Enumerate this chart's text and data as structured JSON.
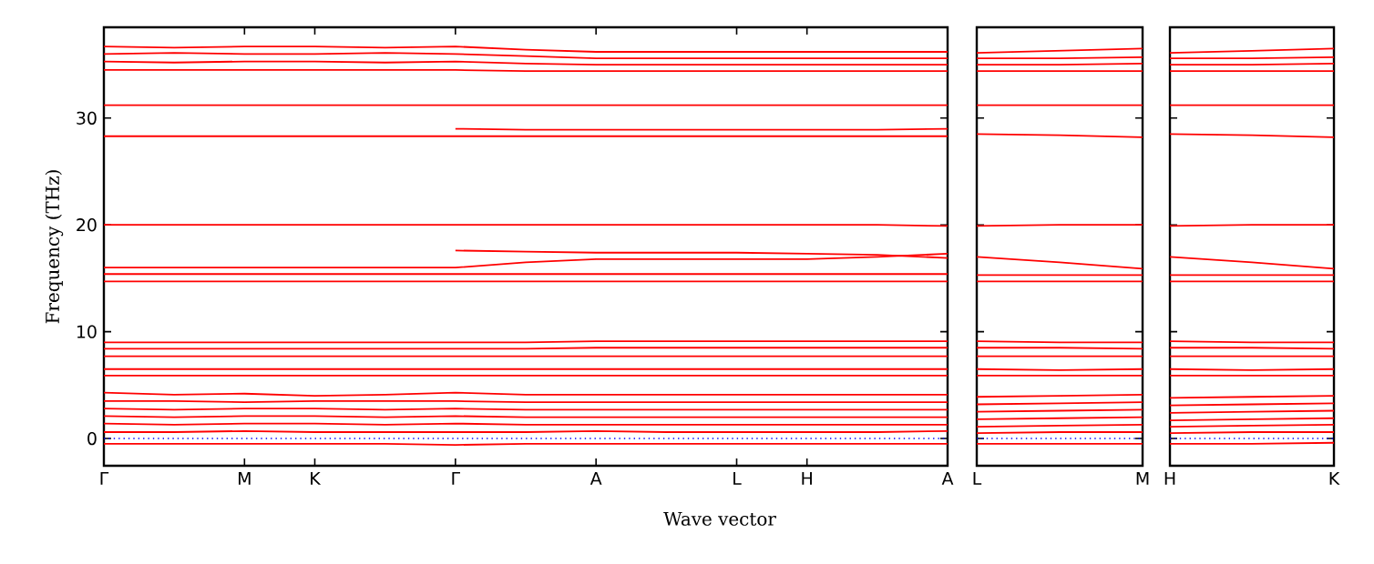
{
  "chart_data": [
    {
      "type": "line",
      "ylabel": "Frequency (THz)",
      "xlabel": "Wave vector",
      "ylim": [
        -2.55,
        38.5
      ],
      "categories": [
        "Γ",
        null,
        "M",
        "K",
        null,
        "Γ",
        null,
        "A",
        null,
        "L",
        "H",
        null,
        "A"
      ],
      "yticks": [
        0,
        10,
        20,
        30
      ],
      "ref_lines": [
        {
          "axis": "y",
          "value": 0,
          "color": "#0000ff",
          "line_style": "dotted"
        }
      ],
      "series": [
        {
          "color": "#ff0000",
          "values": [
            36.7,
            36.6,
            36.7,
            36.7,
            36.6,
            36.7,
            36.4,
            36.2,
            36.2,
            36.2,
            36.2,
            36.2,
            36.2
          ]
        },
        {
          "color": "#ff0000",
          "values": [
            36.0,
            36.1,
            36.0,
            36.0,
            36.1,
            36.0,
            35.8,
            35.6,
            35.6,
            35.6,
            35.6,
            35.6,
            35.6
          ]
        },
        {
          "color": "#ff0000",
          "values": [
            35.3,
            35.2,
            35.3,
            35.3,
            35.2,
            35.3,
            35.1,
            35.0,
            35.0,
            35.0,
            35.0,
            35.0,
            35.0
          ]
        },
        {
          "color": "#ff0000",
          "values": [
            34.5,
            34.5,
            34.5,
            34.5,
            34.5,
            34.5,
            34.4,
            34.4,
            34.4,
            34.4,
            34.4,
            34.4,
            34.4
          ]
        },
        {
          "color": "#ff0000",
          "values": [
            31.2,
            31.2,
            31.2,
            31.2,
            31.2,
            31.2,
            31.2,
            31.2,
            31.2,
            31.2,
            31.2,
            31.2,
            31.2
          ]
        },
        {
          "color": "#ff0000",
          "values": [
            28.3,
            28.3,
            28.3,
            28.3,
            28.3,
            28.3,
            28.3,
            28.3,
            28.3,
            28.3,
            28.3,
            28.3,
            28.3
          ]
        },
        {
          "color": "#ff0000",
          "values": [
            null,
            null,
            null,
            null,
            null,
            29.0,
            28.9,
            28.9,
            28.9,
            28.9,
            28.9,
            28.9,
            29.0
          ]
        },
        {
          "color": "#ff0000",
          "values": [
            20.0,
            20.0,
            20.0,
            20.0,
            20.0,
            20.0,
            20.0,
            20.0,
            20.0,
            20.0,
            20.0,
            20.0,
            19.9
          ]
        },
        {
          "color": "#ff0000",
          "values": [
            null,
            null,
            null,
            null,
            null,
            17.6,
            17.5,
            17.4,
            17.4,
            17.4,
            17.3,
            17.2,
            16.9
          ]
        },
        {
          "color": "#ff0000",
          "values": [
            16.0,
            16.0,
            16.0,
            16.0,
            16.0,
            16.0,
            16.5,
            16.8,
            16.8,
            16.8,
            16.8,
            17.0,
            17.3
          ]
        },
        {
          "color": "#ff0000",
          "values": [
            15.4,
            15.4,
            15.4,
            15.4,
            15.4,
            15.4,
            15.4,
            15.4,
            15.4,
            15.4,
            15.4,
            15.4,
            15.4
          ]
        },
        {
          "color": "#ff0000",
          "values": [
            14.7,
            14.7,
            14.7,
            14.7,
            14.7,
            14.7,
            14.7,
            14.7,
            14.7,
            14.7,
            14.7,
            14.7,
            14.7
          ]
        },
        {
          "color": "#ff0000",
          "values": [
            9.0,
            9.0,
            9.0,
            9.0,
            9.0,
            9.0,
            9.0,
            9.1,
            9.1,
            9.1,
            9.1,
            9.1,
            9.1
          ]
        },
        {
          "color": "#ff0000",
          "values": [
            8.4,
            8.4,
            8.4,
            8.4,
            8.4,
            8.4,
            8.4,
            8.5,
            8.5,
            8.5,
            8.5,
            8.5,
            8.5
          ]
        },
        {
          "color": "#ff0000",
          "values": [
            7.7,
            7.7,
            7.7,
            7.7,
            7.7,
            7.7,
            7.7,
            7.7,
            7.7,
            7.7,
            7.7,
            7.7,
            7.7
          ]
        },
        {
          "color": "#ff0000",
          "values": [
            6.5,
            6.5,
            6.5,
            6.5,
            6.5,
            6.5,
            6.5,
            6.5,
            6.5,
            6.5,
            6.5,
            6.5,
            6.5
          ]
        },
        {
          "color": "#ff0000",
          "values": [
            5.9,
            5.9,
            5.9,
            5.9,
            5.9,
            5.9,
            5.9,
            5.9,
            5.9,
            5.9,
            5.9,
            5.9,
            5.9
          ]
        },
        {
          "color": "#ff0000",
          "values": [
            4.3,
            4.1,
            4.2,
            4.0,
            4.1,
            4.3,
            4.1,
            4.1,
            4.1,
            4.1,
            4.1,
            4.1,
            4.1
          ]
        },
        {
          "color": "#ff0000",
          "values": [
            3.5,
            3.5,
            3.4,
            3.5,
            3.5,
            3.5,
            3.4,
            3.4,
            3.4,
            3.4,
            3.4,
            3.4,
            3.4
          ]
        },
        {
          "color": "#ff0000",
          "values": [
            2.8,
            2.7,
            2.8,
            2.8,
            2.7,
            2.8,
            2.7,
            2.7,
            2.7,
            2.7,
            2.7,
            2.7,
            2.7
          ]
        },
        {
          "color": "#ff0000",
          "values": [
            2.1,
            2.0,
            2.1,
            2.1,
            2.0,
            2.1,
            2.0,
            2.0,
            2.0,
            2.0,
            2.0,
            2.0,
            2.0
          ]
        },
        {
          "color": "#ff0000",
          "values": [
            1.4,
            1.3,
            1.4,
            1.4,
            1.3,
            1.4,
            1.3,
            1.3,
            1.3,
            1.3,
            1.3,
            1.3,
            1.3
          ]
        },
        {
          "color": "#ff0000",
          "values": [
            0.6,
            0.6,
            0.7,
            0.6,
            0.6,
            0.6,
            0.6,
            0.7,
            0.6,
            0.6,
            0.6,
            0.6,
            0.7
          ]
        },
        {
          "color": "#ff0000",
          "values": [
            -0.5,
            -0.5,
            -0.5,
            -0.5,
            -0.5,
            -0.6,
            -0.5,
            -0.5,
            -0.5,
            -0.5,
            -0.5,
            -0.5,
            -0.5
          ]
        }
      ]
    },
    {
      "type": "line",
      "tick_labels": "x",
      "ylim": [
        -2.55,
        38.5
      ],
      "categories": [
        "L",
        null,
        "M"
      ],
      "yticks": [
        0,
        10,
        20,
        30
      ],
      "ref_lines": [
        {
          "axis": "y",
          "value": 0,
          "color": "#0000ff",
          "line_style": "dotted"
        }
      ],
      "series": [
        {
          "color": "#ff0000",
          "values": [
            36.1,
            36.3,
            36.5
          ]
        },
        {
          "color": "#ff0000",
          "values": [
            35.6,
            35.6,
            35.7
          ]
        },
        {
          "color": "#ff0000",
          "values": [
            35.0,
            35.0,
            35.1
          ]
        },
        {
          "color": "#ff0000",
          "values": [
            34.4,
            34.4,
            34.4
          ]
        },
        {
          "color": "#ff0000",
          "values": [
            31.2,
            31.2,
            31.2
          ]
        },
        {
          "color": "#ff0000",
          "values": [
            28.5,
            28.4,
            28.2
          ]
        },
        {
          "color": "#ff0000",
          "values": [
            19.9,
            20.0,
            20.0
          ]
        },
        {
          "color": "#ff0000",
          "values": [
            17.0,
            16.5,
            15.9
          ]
        },
        {
          "color": "#ff0000",
          "values": [
            15.3,
            15.3,
            15.3
          ]
        },
        {
          "color": "#ff0000",
          "values": [
            14.7,
            14.7,
            14.7
          ]
        },
        {
          "color": "#ff0000",
          "values": [
            9.1,
            9.0,
            9.0
          ]
        },
        {
          "color": "#ff0000",
          "values": [
            8.5,
            8.5,
            8.4
          ]
        },
        {
          "color": "#ff0000",
          "values": [
            7.7,
            7.7,
            7.7
          ]
        },
        {
          "color": "#ff0000",
          "values": [
            6.5,
            6.4,
            6.5
          ]
        },
        {
          "color": "#ff0000",
          "values": [
            5.9,
            5.9,
            5.9
          ]
        },
        {
          "color": "#ff0000",
          "values": [
            3.9,
            4.0,
            4.1
          ]
        },
        {
          "color": "#ff0000",
          "values": [
            3.2,
            3.3,
            3.4
          ]
        },
        {
          "color": "#ff0000",
          "values": [
            2.5,
            2.6,
            2.7
          ]
        },
        {
          "color": "#ff0000",
          "values": [
            1.8,
            1.9,
            2.0
          ]
        },
        {
          "color": "#ff0000",
          "values": [
            1.1,
            1.2,
            1.3
          ]
        },
        {
          "color": "#ff0000",
          "values": [
            0.5,
            0.6,
            0.6
          ]
        },
        {
          "color": "#ff0000",
          "values": [
            -0.5,
            -0.5,
            -0.5
          ]
        }
      ]
    },
    {
      "type": "line",
      "tick_labels": "x",
      "ylim": [
        -2.55,
        38.5
      ],
      "categories": [
        "H",
        null,
        "K"
      ],
      "yticks": [
        0,
        10,
        20,
        30
      ],
      "ref_lines": [
        {
          "axis": "y",
          "value": 0,
          "color": "#0000ff",
          "line_style": "dotted"
        }
      ],
      "series": [
        {
          "color": "#ff0000",
          "values": [
            36.1,
            36.3,
            36.5
          ]
        },
        {
          "color": "#ff0000",
          "values": [
            35.6,
            35.6,
            35.7
          ]
        },
        {
          "color": "#ff0000",
          "values": [
            35.0,
            35.0,
            35.1
          ]
        },
        {
          "color": "#ff0000",
          "values": [
            34.4,
            34.4,
            34.4
          ]
        },
        {
          "color": "#ff0000",
          "values": [
            31.2,
            31.2,
            31.2
          ]
        },
        {
          "color": "#ff0000",
          "values": [
            28.5,
            28.4,
            28.2
          ]
        },
        {
          "color": "#ff0000",
          "values": [
            19.9,
            20.0,
            20.0
          ]
        },
        {
          "color": "#ff0000",
          "values": [
            17.0,
            16.5,
            15.9
          ]
        },
        {
          "color": "#ff0000",
          "values": [
            15.3,
            15.3,
            15.3
          ]
        },
        {
          "color": "#ff0000",
          "values": [
            14.7,
            14.7,
            14.7
          ]
        },
        {
          "color": "#ff0000",
          "values": [
            9.1,
            9.0,
            9.0
          ]
        },
        {
          "color": "#ff0000",
          "values": [
            8.5,
            8.5,
            8.4
          ]
        },
        {
          "color": "#ff0000",
          "values": [
            7.7,
            7.7,
            7.7
          ]
        },
        {
          "color": "#ff0000",
          "values": [
            6.5,
            6.4,
            6.5
          ]
        },
        {
          "color": "#ff0000",
          "values": [
            5.9,
            5.9,
            5.9
          ]
        },
        {
          "color": "#ff0000",
          "values": [
            3.8,
            3.9,
            4.0
          ]
        },
        {
          "color": "#ff0000",
          "values": [
            3.1,
            3.2,
            3.3
          ]
        },
        {
          "color": "#ff0000",
          "values": [
            2.4,
            2.5,
            2.6
          ]
        },
        {
          "color": "#ff0000",
          "values": [
            1.7,
            1.8,
            1.9
          ]
        },
        {
          "color": "#ff0000",
          "values": [
            1.1,
            1.2,
            1.3
          ]
        },
        {
          "color": "#ff0000",
          "values": [
            0.5,
            0.6,
            0.6
          ]
        },
        {
          "color": "#ff0000",
          "values": [
            -0.5,
            -0.5,
            -0.4
          ]
        }
      ]
    }
  ]
}
